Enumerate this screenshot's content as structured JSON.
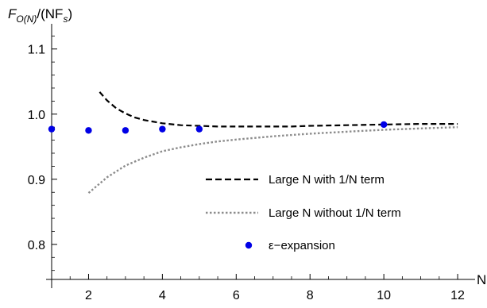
{
  "chart_data": {
    "type": "line",
    "ylabel": {
      "main": "F",
      "sub": "O(N)",
      "tail": "/(NF",
      "tail_sub": "s",
      "close": ")"
    },
    "xlabel": "N",
    "xlim": [
      1,
      12.3
    ],
    "ylim": [
      0.745,
      1.135
    ],
    "x_ticks": [
      2,
      4,
      6,
      8,
      10,
      12
    ],
    "y_ticks": [
      0.8,
      0.9,
      1.0,
      1.1
    ],
    "y_tick_labels": [
      "0.8",
      "0.9",
      "1.0",
      "1.1"
    ],
    "grid": false,
    "legend_position": "lower-right",
    "series": [
      {
        "name": "Large N with 1/N term",
        "style": "dashed",
        "color": "#000000",
        "x": [
          2.3,
          2.5,
          2.75,
          3,
          3.25,
          3.5,
          4,
          4.5,
          5,
          5.5,
          6,
          6.5,
          7,
          7.5,
          8,
          9,
          10,
          11,
          12
        ],
        "y": [
          1.034,
          1.021,
          1.009,
          1.001,
          0.995,
          0.991,
          0.986,
          0.983,
          0.982,
          0.981,
          0.981,
          0.981,
          0.981,
          0.981,
          0.982,
          0.983,
          0.984,
          0.985,
          0.985
        ]
      },
      {
        "name": "Large N without 1/N term",
        "style": "dotted",
        "color": "#8c8c8c",
        "x": [
          2,
          2.5,
          3,
          3.5,
          4,
          4.5,
          5,
          5.5,
          6,
          7,
          8,
          9,
          10,
          11,
          12
        ],
        "y": [
          0.879,
          0.903,
          0.921,
          0.933,
          0.943,
          0.949,
          0.954,
          0.958,
          0.961,
          0.966,
          0.97,
          0.973,
          0.976,
          0.978,
          0.98
        ]
      },
      {
        "name": "ε−expansion",
        "style": "markers",
        "color": "#0000e6",
        "x": [
          1,
          2,
          3,
          4,
          5,
          10
        ],
        "y": [
          0.977,
          0.975,
          0.975,
          0.977,
          0.977,
          0.984
        ]
      }
    ]
  }
}
